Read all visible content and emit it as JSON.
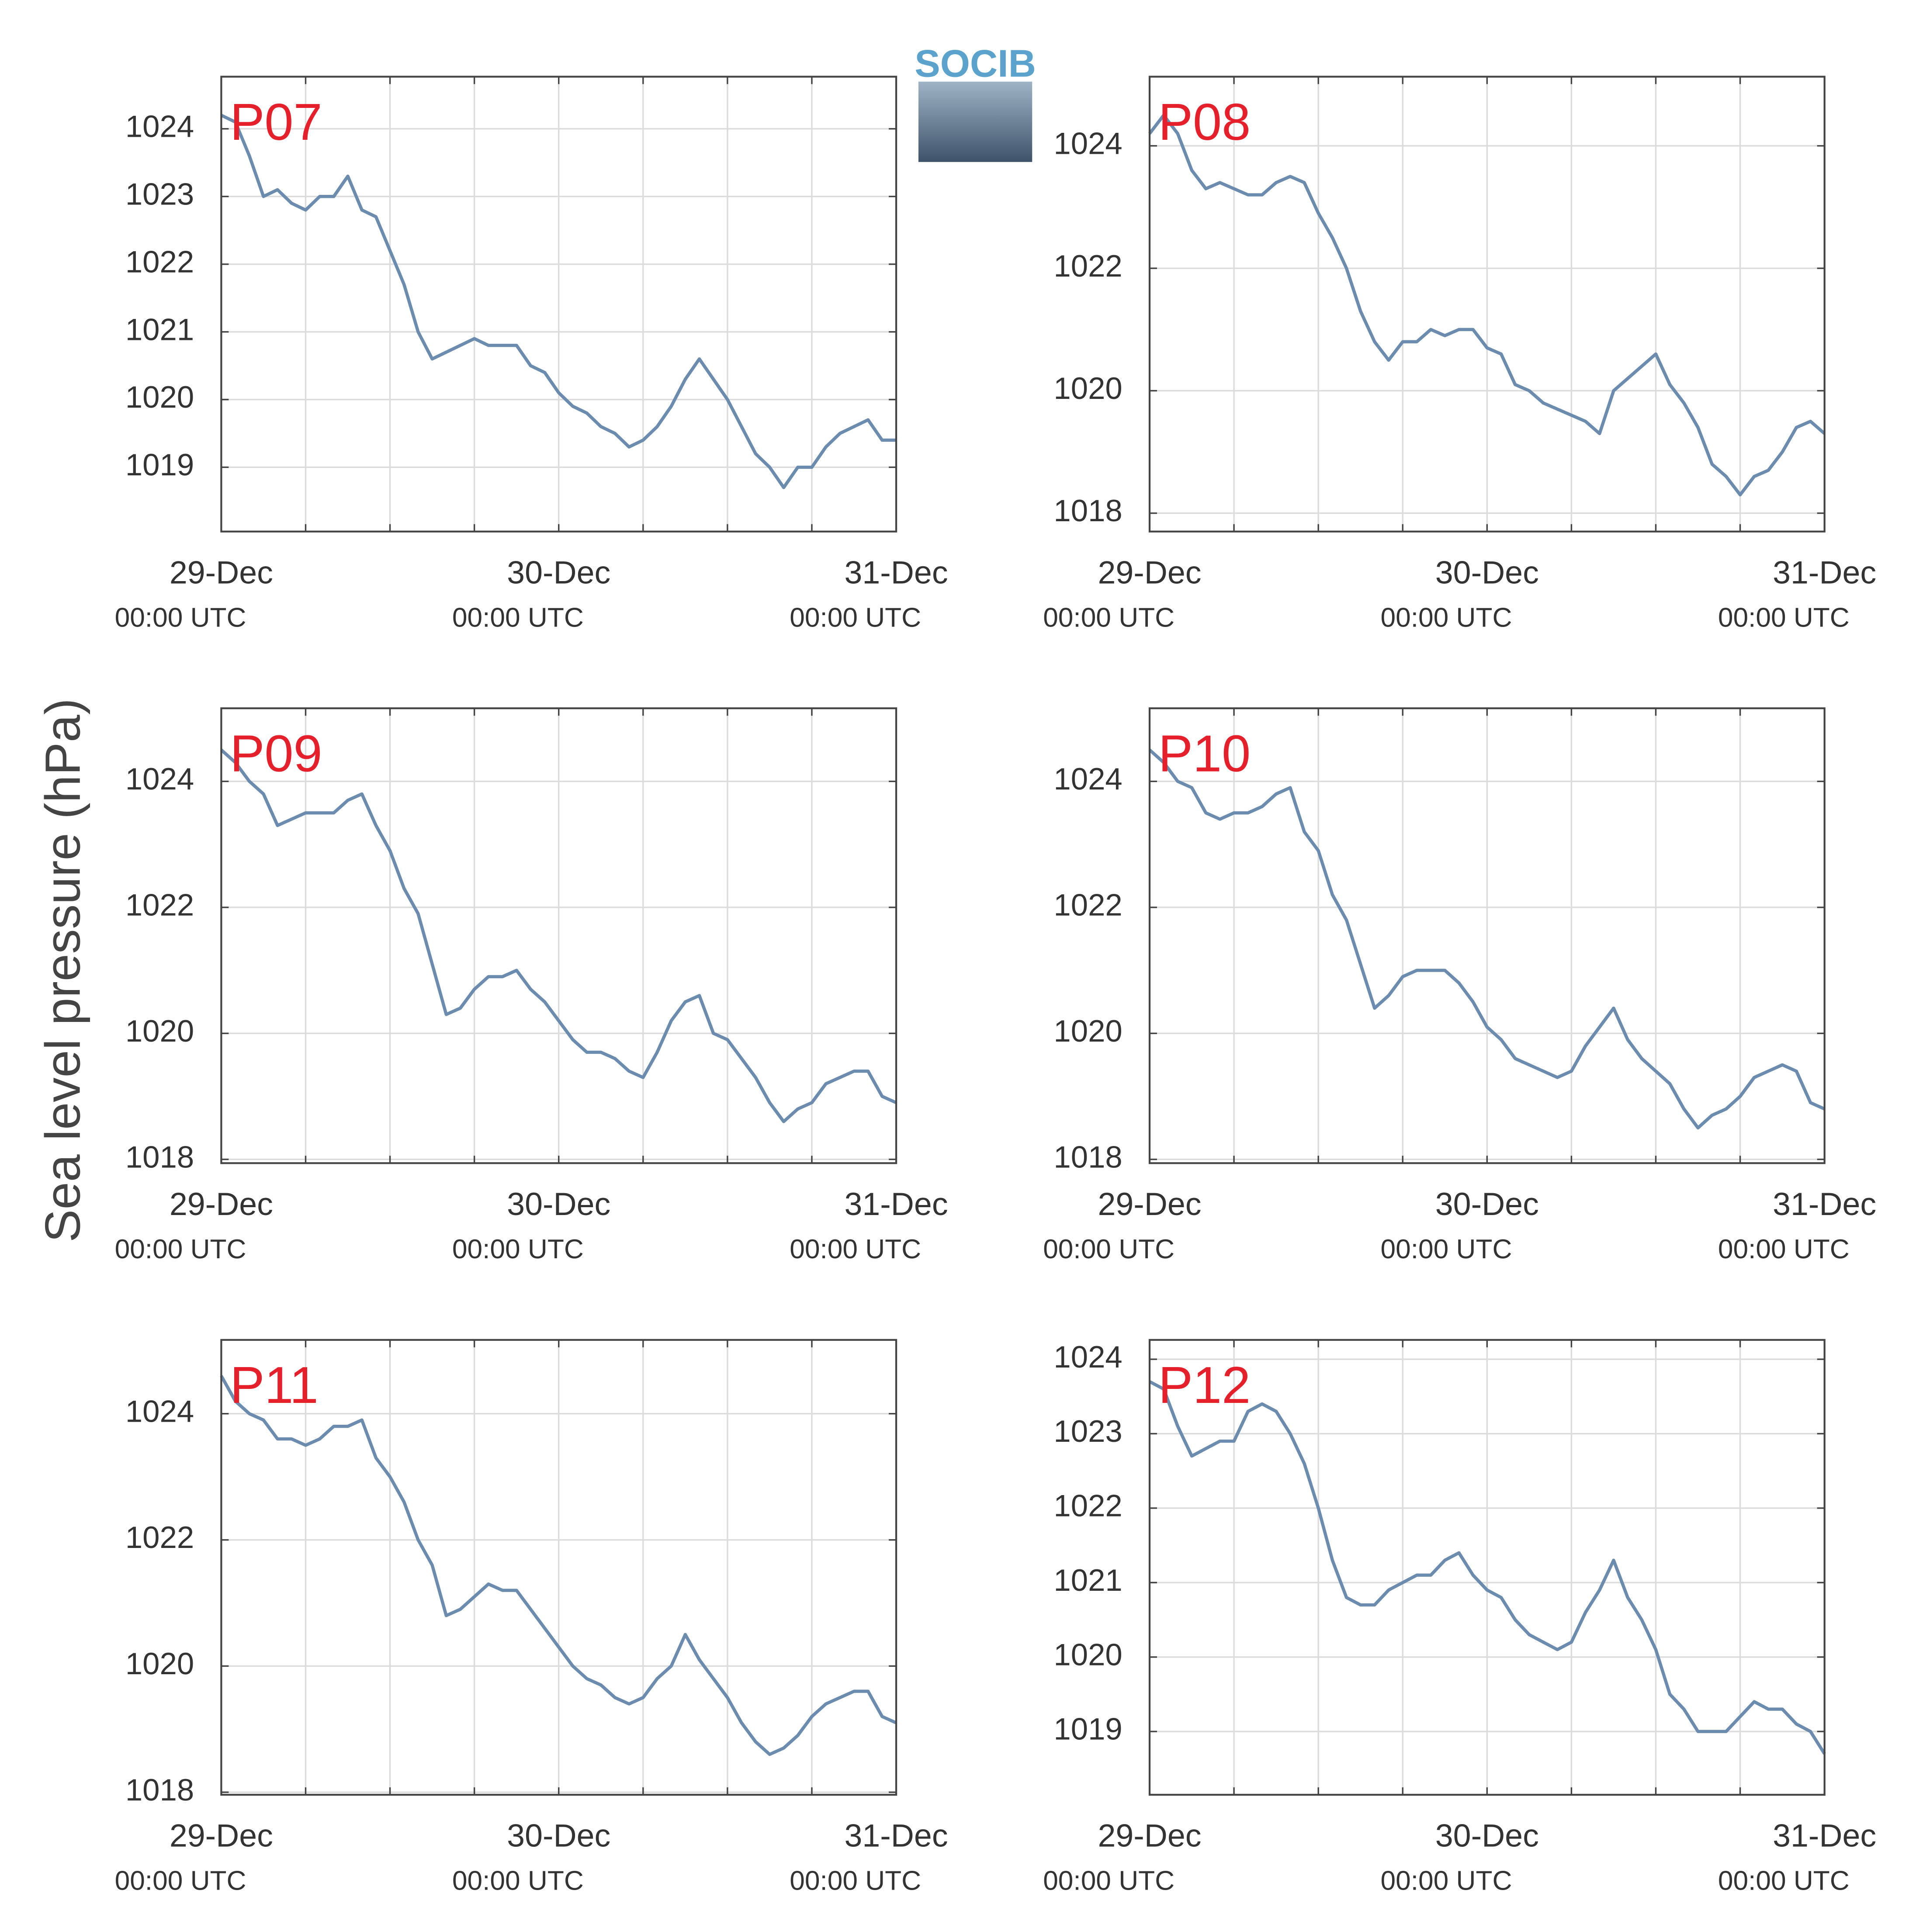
{
  "ylabel": "Sea level pressure (hPa)",
  "logo": "SOCIB",
  "chart_data": [
    {
      "type": "line",
      "title": "P07",
      "color": "#6b8cae",
      "x": [
        0,
        1,
        2,
        3,
        4,
        5,
        6,
        7,
        8,
        9,
        10,
        11,
        12,
        13,
        14,
        15,
        16,
        17,
        18,
        19,
        20,
        21,
        22,
        23,
        24,
        25,
        26,
        27,
        28,
        29,
        30,
        31,
        32,
        33,
        34,
        35,
        36,
        37,
        38,
        39,
        40,
        41,
        42,
        43,
        44,
        45,
        46,
        47,
        48
      ],
      "values": [
        1024.2,
        1024.1,
        1023.6,
        1023.0,
        1023.1,
        1022.9,
        1022.8,
        1023.0,
        1023.0,
        1023.3,
        1022.8,
        1022.7,
        1022.2,
        1021.7,
        1021.0,
        1020.6,
        1020.7,
        1020.8,
        1020.9,
        1020.8,
        1020.8,
        1020.8,
        1020.5,
        1020.4,
        1020.1,
        1019.9,
        1019.8,
        1019.6,
        1019.5,
        1019.3,
        1019.4,
        1019.6,
        1019.9,
        1020.3,
        1020.6,
        1020.3,
        1020.0,
        1019.6,
        1019.2,
        1019.0,
        1018.7,
        1019.0,
        1019.0,
        1019.3,
        1019.5,
        1019.6,
        1019.7,
        1019.4,
        1019.4
      ],
      "xlim": [
        0,
        48
      ],
      "xticks": [
        {
          "value": 0,
          "label": "29-Dec",
          "sublabel": "00:00 UTC"
        },
        {
          "value": 24,
          "label": "30-Dec",
          "sublabel": "00:00 UTC"
        },
        {
          "value": 48,
          "label": "31-Dec",
          "sublabel": "00:00 UTC"
        }
      ],
      "xgrid": [
        0,
        6,
        12,
        18,
        24,
        30,
        36,
        42,
        48
      ],
      "ylim": [
        1018.05,
        1024.77
      ],
      "yticks": [
        1019,
        1020,
        1021,
        1022,
        1023,
        1024
      ],
      "grid": true
    },
    {
      "type": "line",
      "title": "P08",
      "color": "#6b8cae",
      "x": [
        0,
        1,
        2,
        3,
        4,
        5,
        6,
        7,
        8,
        9,
        10,
        11,
        12,
        13,
        14,
        15,
        16,
        17,
        18,
        19,
        20,
        21,
        22,
        23,
        24,
        25,
        26,
        27,
        28,
        29,
        30,
        31,
        32,
        33,
        34,
        35,
        36,
        37,
        38,
        39,
        40,
        41,
        42,
        43,
        44,
        45,
        46,
        47,
        48
      ],
      "values": [
        1024.2,
        1024.5,
        1024.2,
        1023.6,
        1023.3,
        1023.4,
        1023.3,
        1023.2,
        1023.2,
        1023.4,
        1023.5,
        1023.4,
        1022.9,
        1022.5,
        1022.0,
        1021.3,
        1020.8,
        1020.5,
        1020.8,
        1020.8,
        1021.0,
        1020.9,
        1021.0,
        1021.0,
        1020.7,
        1020.6,
        1020.1,
        1020.0,
        1019.8,
        1019.7,
        1019.6,
        1019.5,
        1019.3,
        1020.0,
        1020.2,
        1020.4,
        1020.6,
        1020.1,
        1019.8,
        1019.4,
        1018.8,
        1018.6,
        1018.3,
        1018.6,
        1018.7,
        1019.0,
        1019.4,
        1019.5,
        1019.3
      ],
      "xlim": [
        0,
        48
      ],
      "xticks": [
        {
          "value": 0,
          "label": "29-Dec",
          "sublabel": "00:00 UTC"
        },
        {
          "value": 24,
          "label": "30-Dec",
          "sublabel": "00:00 UTC"
        },
        {
          "value": 48,
          "label": "31-Dec",
          "sublabel": "00:00 UTC"
        }
      ],
      "xgrid": [
        0,
        6,
        12,
        18,
        24,
        30,
        36,
        42,
        48
      ],
      "ylim": [
        1017.7,
        1025.13
      ],
      "yticks": [
        1018,
        1020,
        1022,
        1024
      ],
      "grid": true
    },
    {
      "type": "line",
      "title": "P09",
      "color": "#6b8cae",
      "x": [
        0,
        1,
        2,
        3,
        4,
        5,
        6,
        7,
        8,
        9,
        10,
        11,
        12,
        13,
        14,
        15,
        16,
        17,
        18,
        19,
        20,
        21,
        22,
        23,
        24,
        25,
        26,
        27,
        28,
        29,
        30,
        31,
        32,
        33,
        34,
        35,
        36,
        37,
        38,
        39,
        40,
        41,
        42,
        43,
        44,
        45,
        46,
        47,
        48
      ],
      "values": [
        1024.5,
        1024.3,
        1024.0,
        1023.8,
        1023.3,
        1023.4,
        1023.5,
        1023.5,
        1023.5,
        1023.7,
        1023.8,
        1023.3,
        1022.9,
        1022.3,
        1021.9,
        1021.1,
        1020.3,
        1020.4,
        1020.7,
        1020.9,
        1020.9,
        1021.0,
        1020.7,
        1020.5,
        1020.2,
        1019.9,
        1019.7,
        1019.7,
        1019.6,
        1019.4,
        1019.3,
        1019.7,
        1020.2,
        1020.5,
        1020.6,
        1020.0,
        1019.9,
        1019.6,
        1019.3,
        1018.9,
        1018.6,
        1018.8,
        1018.9,
        1019.2,
        1019.3,
        1019.4,
        1019.4,
        1019.0,
        1018.9
      ],
      "xlim": [
        0,
        48
      ],
      "xticks": [
        {
          "value": 0,
          "label": "29-Dec",
          "sublabel": "00:00 UTC"
        },
        {
          "value": 24,
          "label": "30-Dec",
          "sublabel": "00:00 UTC"
        },
        {
          "value": 48,
          "label": "31-Dec",
          "sublabel": "00:00 UTC"
        }
      ],
      "xgrid": [
        0,
        6,
        12,
        18,
        24,
        30,
        36,
        42,
        48
      ],
      "ylim": [
        1017.94,
        1025.16
      ],
      "yticks": [
        1018,
        1020,
        1022,
        1024
      ],
      "grid": true
    },
    {
      "type": "line",
      "title": "P10",
      "color": "#6b8cae",
      "x": [
        0,
        1,
        2,
        3,
        4,
        5,
        6,
        7,
        8,
        9,
        10,
        11,
        12,
        13,
        14,
        15,
        16,
        17,
        18,
        19,
        20,
        21,
        22,
        23,
        24,
        25,
        26,
        27,
        28,
        29,
        30,
        31,
        32,
        33,
        34,
        35,
        36,
        37,
        38,
        39,
        40,
        41,
        42,
        43,
        44,
        45,
        46,
        47,
        48
      ],
      "values": [
        1024.5,
        1024.3,
        1024.0,
        1023.9,
        1023.5,
        1023.4,
        1023.5,
        1023.5,
        1023.6,
        1023.8,
        1023.9,
        1023.2,
        1022.9,
        1022.2,
        1021.8,
        1021.1,
        1020.4,
        1020.6,
        1020.9,
        1021.0,
        1021.0,
        1021.0,
        1020.8,
        1020.5,
        1020.1,
        1019.9,
        1019.6,
        1019.5,
        1019.4,
        1019.3,
        1019.4,
        1019.8,
        1020.1,
        1020.4,
        1019.9,
        1019.6,
        1019.4,
        1019.2,
        1018.8,
        1018.5,
        1018.7,
        1018.8,
        1019.0,
        1019.3,
        1019.4,
        1019.5,
        1019.4,
        1018.9,
        1018.8
      ],
      "xlim": [
        0,
        48
      ],
      "xticks": [
        {
          "value": 0,
          "label": "29-Dec",
          "sublabel": "00:00 UTC"
        },
        {
          "value": 24,
          "label": "30-Dec",
          "sublabel": "00:00 UTC"
        },
        {
          "value": 48,
          "label": "31-Dec",
          "sublabel": "00:00 UTC"
        }
      ],
      "xgrid": [
        0,
        6,
        12,
        18,
        24,
        30,
        36,
        42,
        48
      ],
      "ylim": [
        1017.94,
        1025.16
      ],
      "yticks": [
        1018,
        1020,
        1022,
        1024
      ],
      "grid": true
    },
    {
      "type": "line",
      "title": "P11",
      "color": "#6b8cae",
      "x": [
        0,
        1,
        2,
        3,
        4,
        5,
        6,
        7,
        8,
        9,
        10,
        11,
        12,
        13,
        14,
        15,
        16,
        17,
        18,
        19,
        20,
        21,
        22,
        23,
        24,
        25,
        26,
        27,
        28,
        29,
        30,
        31,
        32,
        33,
        34,
        35,
        36,
        37,
        38,
        39,
        40,
        41,
        42,
        43,
        44,
        45,
        46,
        47,
        48
      ],
      "values": [
        1024.6,
        1024.2,
        1024.0,
        1023.9,
        1023.6,
        1023.6,
        1023.5,
        1023.6,
        1023.8,
        1023.8,
        1023.9,
        1023.3,
        1023.0,
        1022.6,
        1022.0,
        1021.6,
        1020.8,
        1020.9,
        1021.1,
        1021.3,
        1021.2,
        1021.2,
        1020.9,
        1020.6,
        1020.3,
        1020.0,
        1019.8,
        1019.7,
        1019.5,
        1019.4,
        1019.5,
        1019.8,
        1020.0,
        1020.5,
        1020.1,
        1019.8,
        1019.5,
        1019.1,
        1018.8,
        1018.6,
        1018.7,
        1018.9,
        1019.2,
        1019.4,
        1019.5,
        1019.6,
        1019.6,
        1019.2,
        1019.1
      ],
      "xlim": [
        0,
        48
      ],
      "xticks": [
        {
          "value": 0,
          "label": "29-Dec",
          "sublabel": "00:00 UTC"
        },
        {
          "value": 24,
          "label": "30-Dec",
          "sublabel": "00:00 UTC"
        },
        {
          "value": 48,
          "label": "31-Dec",
          "sublabel": "00:00 UTC"
        }
      ],
      "xgrid": [
        0,
        6,
        12,
        18,
        24,
        30,
        36,
        42,
        48
      ],
      "ylim": [
        1017.96,
        1025.17
      ],
      "yticks": [
        1018,
        1020,
        1022,
        1024
      ],
      "grid": true
    },
    {
      "type": "line",
      "title": "P12",
      "color": "#6b8cae",
      "x": [
        0,
        1,
        2,
        3,
        4,
        5,
        6,
        7,
        8,
        9,
        10,
        11,
        12,
        13,
        14,
        15,
        16,
        17,
        18,
        19,
        20,
        21,
        22,
        23,
        24,
        25,
        26,
        27,
        28,
        29,
        30,
        31,
        32,
        33,
        34,
        35,
        36,
        37,
        38,
        39,
        40,
        41,
        42,
        43,
        44,
        45,
        46,
        47,
        48
      ],
      "values": [
        1023.7,
        1023.6,
        1023.1,
        1022.7,
        1022.8,
        1022.9,
        1022.9,
        1023.3,
        1023.4,
        1023.3,
        1023.0,
        1022.6,
        1022.0,
        1021.3,
        1020.8,
        1020.7,
        1020.7,
        1020.9,
        1021.0,
        1021.1,
        1021.1,
        1021.3,
        1021.4,
        1021.1,
        1020.9,
        1020.8,
        1020.5,
        1020.3,
        1020.2,
        1020.1,
        1020.2,
        1020.6,
        1020.9,
        1021.3,
        1020.8,
        1020.5,
        1020.1,
        1019.5,
        1019.3,
        1019.0,
        1019.0,
        1019.0,
        1019.2,
        1019.4,
        1019.3,
        1019.3,
        1019.1,
        1019.0,
        1018.7
      ],
      "xlim": [
        0,
        48
      ],
      "xticks": [
        {
          "value": 0,
          "label": "29-Dec",
          "sublabel": "00:00 UTC"
        },
        {
          "value": 24,
          "label": "30-Dec",
          "sublabel": "00:00 UTC"
        },
        {
          "value": 48,
          "label": "31-Dec",
          "sublabel": "00:00 UTC"
        }
      ],
      "xgrid": [
        0,
        6,
        12,
        18,
        24,
        30,
        36,
        42,
        48
      ],
      "ylim": [
        1018.15,
        1024.26
      ],
      "yticks": [
        1019,
        1020,
        1021,
        1022,
        1023,
        1024
      ],
      "grid": true
    }
  ]
}
